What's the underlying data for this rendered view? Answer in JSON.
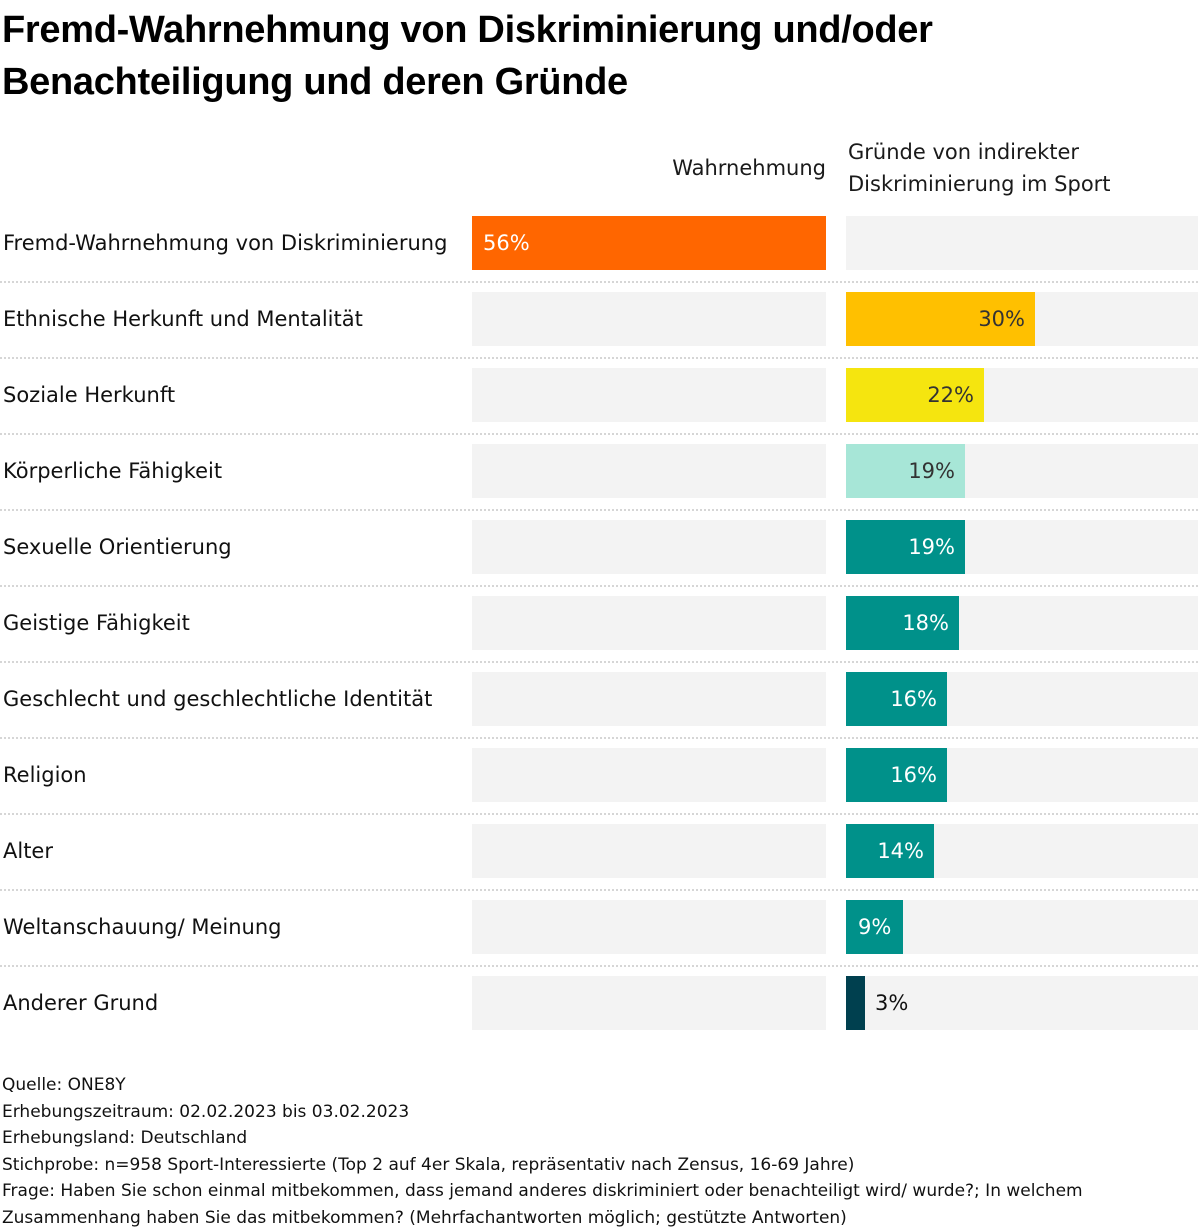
{
  "title": "Fremd-Wahrnehmung von Diskriminierung und/oder Benachteiligung und deren Gründe",
  "chart_data": {
    "type": "bar",
    "orientation": "horizontal",
    "title": "Fremd-Wahrnehmung von Diskriminierung und/oder Benachteiligung und deren Gründe",
    "xlim": [
      0,
      56
    ],
    "grid": false,
    "legend": "none",
    "columns": [
      {
        "key": "wahrnehmung",
        "header": "Wahrnehmung"
      },
      {
        "key": "gruende",
        "header": "Gründe von indirekter Diskriminierung im Sport"
      }
    ],
    "categories": [
      "Fremd-Wahrnehmung von Diskriminierung",
      "Ethnische Herkunft und Mentalität",
      "Soziale Herkunft",
      "Körperliche Fähigkeit",
      "Sexuelle Orientierung",
      "Geistige Fähigkeit",
      "Geschlecht und geschlechtliche Identität",
      "Religion",
      "Alter",
      "Weltanschauung/ Meinung",
      "Anderer Grund"
    ],
    "series": [
      {
        "name": "Wahrnehmung",
        "values": [
          56,
          null,
          null,
          null,
          null,
          null,
          null,
          null,
          null,
          null,
          null
        ],
        "labels": [
          "56%",
          "",
          "",
          "",
          "",
          "",
          "",
          "",
          "",
          "",
          ""
        ],
        "colors": [
          "#ff6600"
        ]
      },
      {
        "name": "Gründe von indirekter Diskriminierung im Sport",
        "values": [
          null,
          30,
          22,
          19,
          19,
          18,
          16,
          16,
          14,
          9,
          3
        ],
        "labels": [
          "",
          "30%",
          "22%",
          "19%",
          "19%",
          "18%",
          "16%",
          "16%",
          "14%",
          "9%",
          "3%"
        ],
        "colors": [
          "",
          "#ffc000",
          "#f5e50f",
          "#a7e6d7",
          "#00918a",
          "#00918a",
          "#00918a",
          "#00918a",
          "#00918a",
          "#00918a",
          "#00404f"
        ]
      }
    ],
    "label_colors": {
      "dark": "#333333",
      "light": "#ffffff"
    },
    "track_color": "#f3f3f3"
  },
  "footer": {
    "source": "Quelle: ONE8Y",
    "period": "Erhebungszeitraum: 02.02.2023 bis 03.02.2023",
    "country": "Erhebungsland: Deutschland",
    "sample": "Stichprobe: n=958 Sport-Interessierte (Top 2 auf 4er Skala, repräsentativ nach Zensus, 16-69 Jahre)",
    "question": "Frage: Haben Sie schon einmal mitbekommen, dass jemand anderes diskriminiert oder benachteiligt wird/ wurde?; In welchem Zusammenhang haben Sie das mitbekommen? (Mehrfachantworten möglich; gestützte Antworten)"
  }
}
